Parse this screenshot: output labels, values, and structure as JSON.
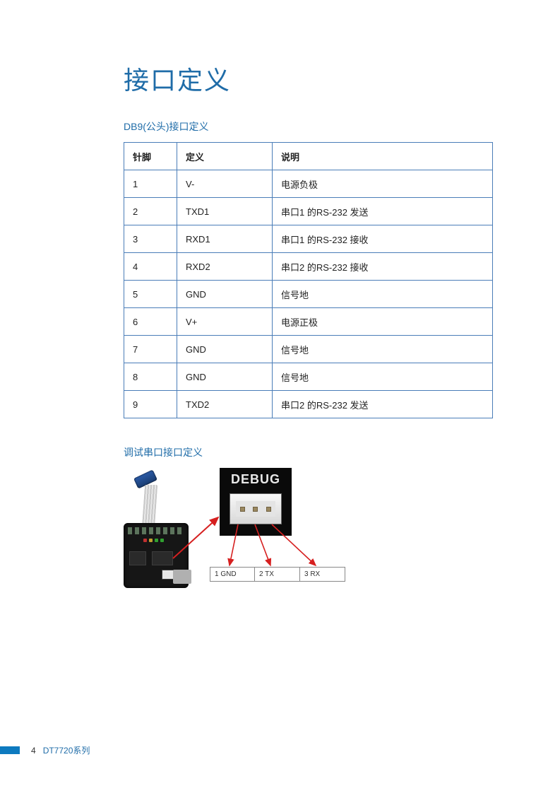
{
  "page": {
    "title": "接口定义",
    "page_number": "4",
    "series": "DT7720系列"
  },
  "colors": {
    "heading": "#1f6ca8",
    "table_border": "#4a7db8",
    "footer_bar": "#0d7abf",
    "text": "#222222",
    "background": "#ffffff"
  },
  "section1": {
    "title": "DB9(公头)接口定义",
    "table": {
      "columns": [
        "针脚",
        "定义",
        "说明"
      ],
      "rows": [
        [
          "1",
          "V-",
          "电源负极"
        ],
        [
          "2",
          "TXD1",
          "串口1 的RS-232 发送"
        ],
        [
          "3",
          "RXD1",
          "串口1 的RS-232 接收"
        ],
        [
          "4",
          "RXD2",
          "串口2 的RS-232 接收"
        ],
        [
          "5",
          "GND",
          "信号地"
        ],
        [
          "6",
          "V+",
          "电源正极"
        ],
        [
          "7",
          "GND",
          "信号地"
        ],
        [
          "8",
          "GND",
          "信号地"
        ],
        [
          "9",
          "TXD2",
          "串口2 的RS-232 发送"
        ]
      ]
    }
  },
  "section2": {
    "title": "调试串口接口定义",
    "debug_label": "DEBUG",
    "pins": [
      {
        "num": "1",
        "label": "1 GND"
      },
      {
        "num": "2",
        "label": "2 TX"
      },
      {
        "num": "3",
        "label": "3 RX"
      }
    ],
    "arrow_color": "#d62020"
  }
}
